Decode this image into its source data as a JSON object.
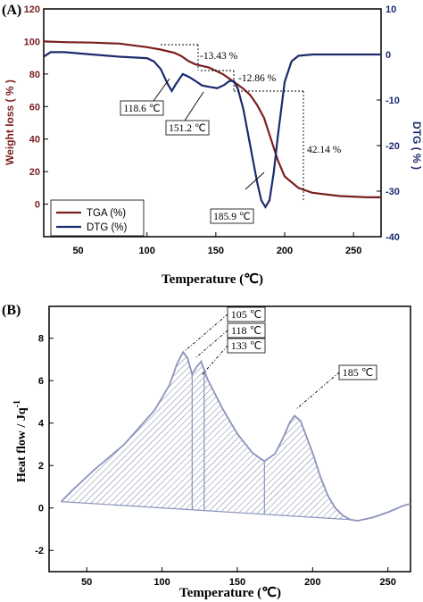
{
  "chart_data": [
    {
      "panel_label": "(A)",
      "type": "line",
      "xlabel": "Temperature (℃)",
      "ylabel": "Weight loss ( % )",
      "y2label": "DTG ( % )",
      "xlim": [
        25,
        270
      ],
      "ylim": [
        -20,
        120
      ],
      "y2lim": [
        -40,
        10
      ],
      "x_ticks": [
        50,
        100,
        150,
        200,
        250
      ],
      "y_ticks": [
        0,
        20,
        40,
        60,
        80,
        100,
        120
      ],
      "y2_ticks": [
        -40,
        -30,
        -20,
        -10,
        0,
        10
      ],
      "legend_position": "bottom-left",
      "colors": {
        "tga": "#7a1f1f",
        "dtg": "#1c2a6e",
        "y2_axis": "#1c2a6e"
      },
      "series": [
        {
          "name": "TGA (%)",
          "axis": "left",
          "x": [
            25,
            40,
            60,
            80,
            100,
            110,
            120,
            125,
            130,
            135,
            140,
            145,
            150,
            155,
            160,
            165,
            170,
            175,
            180,
            185,
            190,
            195,
            200,
            210,
            220,
            240,
            260,
            270
          ],
          "y": [
            100,
            99.6,
            99.3,
            98.7,
            96.5,
            95,
            93,
            91,
            88,
            86,
            85,
            84,
            82,
            80,
            77,
            74,
            71,
            67,
            61,
            53,
            40,
            27,
            17,
            10,
            7,
            5,
            4.2,
            4.2
          ]
        },
        {
          "name": "DTG (%)",
          "axis": "right",
          "x": [
            25,
            30,
            40,
            60,
            80,
            100,
            105,
            110,
            115,
            118,
            121,
            126,
            131,
            136,
            140,
            145,
            151,
            156,
            160,
            163,
            166,
            170,
            175,
            180,
            183,
            186,
            189,
            192,
            195,
            200,
            205,
            210,
            220,
            240,
            270
          ],
          "y": [
            -0.5,
            0.5,
            0.5,
            0,
            -0.5,
            -0.8,
            -1.5,
            -3.2,
            -6.5,
            -8,
            -6.5,
            -4.3,
            -5,
            -6,
            -6.8,
            -7.1,
            -7.4,
            -6.7,
            -5.8,
            -5.8,
            -7.5,
            -12,
            -20,
            -28,
            -32,
            -33.5,
            -32,
            -26,
            -18,
            -6,
            -1.5,
            -0.3,
            0,
            0,
            0
          ]
        }
      ],
      "annotations": [
        "-13.43 %",
        "-12.86 %",
        "42.14 %",
        "118.6 ℃",
        "151.2 ℃",
        "185.9 ℃"
      ]
    },
    {
      "panel_label": "(B)",
      "type": "area",
      "xlabel": "Temperature (℃)",
      "ylabel": "Heat flow / Jq",
      "ylabel_superscript": "-1",
      "xlim": [
        25,
        265
      ],
      "ylim": [
        -3,
        9.5
      ],
      "x_ticks": [
        50,
        100,
        150,
        200,
        250
      ],
      "y_ticks": [
        -2,
        0,
        2,
        4,
        6,
        8
      ],
      "colors": {
        "curve": "#8a93bd",
        "hatch": "#5a6185"
      },
      "series": [
        {
          "name": "",
          "x": [
            33,
            40,
            55,
            75,
            95,
            105,
            110,
            114,
            117,
            120,
            123,
            126,
            130,
            140,
            150,
            160,
            168,
            175,
            180,
            185,
            188,
            192,
            200,
            205,
            210,
            215,
            220,
            225,
            230,
            240,
            250,
            260,
            265
          ],
          "y": [
            0.3,
            0.8,
            1.8,
            3.0,
            4.6,
            5.8,
            6.8,
            7.35,
            7.05,
            6.3,
            6.65,
            6.9,
            6.1,
            4.7,
            3.5,
            2.6,
            2.2,
            2.55,
            3.25,
            4.05,
            4.35,
            4.1,
            2.6,
            1.5,
            0.6,
            0,
            -0.35,
            -0.55,
            -0.6,
            -0.45,
            -0.2,
            0.1,
            0.2
          ]
        }
      ],
      "baseline": {
        "x": [
          33,
          225
        ],
        "y": [
          0.3,
          -0.55
        ]
      },
      "dividers_x": [
        120,
        128,
        168
      ],
      "annotations": [
        "105 ℃",
        "118 ℃",
        "133 ℃",
        "185 ℃"
      ]
    }
  ]
}
